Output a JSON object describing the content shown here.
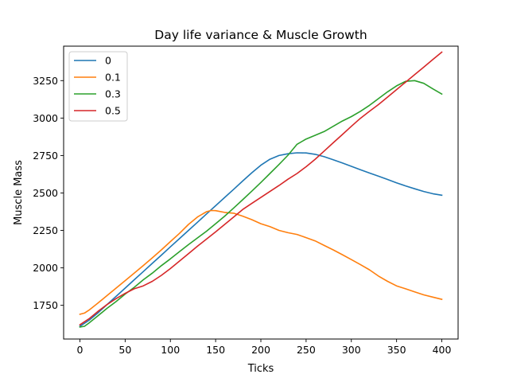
{
  "chart_data": {
    "type": "line",
    "title": "Day life variance & Muscle Growth",
    "xlabel": "Ticks",
    "ylabel": "Muscle Mass",
    "xlim": [
      -18,
      418
    ],
    "ylim": [
      1525,
      3480
    ],
    "xticks": [
      0,
      50,
      100,
      150,
      200,
      250,
      300,
      350,
      400
    ],
    "yticks": [
      1750,
      2000,
      2250,
      2500,
      2750,
      3000,
      3250
    ],
    "grid": false,
    "legend_position": "top-left",
    "series": [
      {
        "name": "0",
        "color": "#1f77b4",
        "points": [
          [
            0,
            1610
          ],
          [
            10,
            1650
          ],
          [
            20,
            1700
          ],
          [
            30,
            1755
          ],
          [
            40,
            1810
          ],
          [
            50,
            1865
          ],
          [
            60,
            1920
          ],
          [
            70,
            1975
          ],
          [
            80,
            2030
          ],
          [
            90,
            2085
          ],
          [
            100,
            2140
          ],
          [
            110,
            2195
          ],
          [
            120,
            2250
          ],
          [
            130,
            2305
          ],
          [
            140,
            2360
          ],
          [
            150,
            2415
          ],
          [
            160,
            2470
          ],
          [
            170,
            2525
          ],
          [
            180,
            2580
          ],
          [
            190,
            2635
          ],
          [
            200,
            2685
          ],
          [
            210,
            2725
          ],
          [
            220,
            2750
          ],
          [
            230,
            2762
          ],
          [
            240,
            2768
          ],
          [
            250,
            2767
          ],
          [
            260,
            2758
          ],
          [
            270,
            2742
          ],
          [
            280,
            2722
          ],
          [
            290,
            2700
          ],
          [
            300,
            2678
          ],
          [
            310,
            2655
          ],
          [
            320,
            2633
          ],
          [
            330,
            2612
          ],
          [
            340,
            2590
          ],
          [
            350,
            2568
          ],
          [
            360,
            2547
          ],
          [
            370,
            2528
          ],
          [
            380,
            2510
          ],
          [
            390,
            2495
          ],
          [
            400,
            2485
          ]
        ]
      },
      {
        "name": "0.1",
        "color": "#ff7f0e",
        "points": [
          [
            0,
            1690
          ],
          [
            5,
            1698
          ],
          [
            10,
            1718
          ],
          [
            20,
            1765
          ],
          [
            30,
            1815
          ],
          [
            40,
            1865
          ],
          [
            50,
            1915
          ],
          [
            60,
            1965
          ],
          [
            70,
            2015
          ],
          [
            80,
            2067
          ],
          [
            90,
            2120
          ],
          [
            100,
            2175
          ],
          [
            110,
            2230
          ],
          [
            120,
            2290
          ],
          [
            130,
            2340
          ],
          [
            140,
            2375
          ],
          [
            145,
            2383
          ],
          [
            150,
            2382
          ],
          [
            160,
            2370
          ],
          [
            170,
            2365
          ],
          [
            180,
            2345
          ],
          [
            190,
            2322
          ],
          [
            200,
            2295
          ],
          [
            210,
            2275
          ],
          [
            220,
            2250
          ],
          [
            230,
            2235
          ],
          [
            240,
            2223
          ],
          [
            250,
            2202
          ],
          [
            260,
            2180
          ],
          [
            270,
            2150
          ],
          [
            280,
            2120
          ],
          [
            290,
            2088
          ],
          [
            300,
            2055
          ],
          [
            310,
            2022
          ],
          [
            320,
            1987
          ],
          [
            330,
            1945
          ],
          [
            340,
            1910
          ],
          [
            350,
            1880
          ],
          [
            360,
            1860
          ],
          [
            370,
            1840
          ],
          [
            380,
            1820
          ],
          [
            390,
            1805
          ],
          [
            400,
            1790
          ]
        ]
      },
      {
        "name": "0.3",
        "color": "#2ca02c",
        "points": [
          [
            0,
            1605
          ],
          [
            5,
            1610
          ],
          [
            10,
            1632
          ],
          [
            20,
            1680
          ],
          [
            30,
            1730
          ],
          [
            40,
            1775
          ],
          [
            50,
            1825
          ],
          [
            60,
            1870
          ],
          [
            70,
            1920
          ],
          [
            80,
            1965
          ],
          [
            90,
            2015
          ],
          [
            100,
            2060
          ],
          [
            110,
            2108
          ],
          [
            120,
            2155
          ],
          [
            130,
            2200
          ],
          [
            140,
            2245
          ],
          [
            150,
            2295
          ],
          [
            160,
            2345
          ],
          [
            170,
            2400
          ],
          [
            180,
            2455
          ],
          [
            190,
            2512
          ],
          [
            200,
            2570
          ],
          [
            210,
            2630
          ],
          [
            220,
            2690
          ],
          [
            230,
            2752
          ],
          [
            240,
            2825
          ],
          [
            250,
            2860
          ],
          [
            260,
            2885
          ],
          [
            270,
            2910
          ],
          [
            280,
            2945
          ],
          [
            290,
            2980
          ],
          [
            300,
            3010
          ],
          [
            310,
            3045
          ],
          [
            320,
            3085
          ],
          [
            330,
            3130
          ],
          [
            340,
            3175
          ],
          [
            350,
            3215
          ],
          [
            360,
            3245
          ],
          [
            370,
            3250
          ],
          [
            380,
            3232
          ],
          [
            390,
            3195
          ],
          [
            400,
            3160
          ]
        ]
      },
      {
        "name": "0.5",
        "color": "#d62728",
        "points": [
          [
            0,
            1620
          ],
          [
            10,
            1660
          ],
          [
            20,
            1710
          ],
          [
            30,
            1755
          ],
          [
            40,
            1795
          ],
          [
            50,
            1830
          ],
          [
            60,
            1860
          ],
          [
            70,
            1880
          ],
          [
            80,
            1910
          ],
          [
            90,
            1950
          ],
          [
            100,
            1995
          ],
          [
            110,
            2045
          ],
          [
            120,
            2095
          ],
          [
            130,
            2145
          ],
          [
            140,
            2192
          ],
          [
            150,
            2240
          ],
          [
            160,
            2290
          ],
          [
            170,
            2340
          ],
          [
            180,
            2390
          ],
          [
            190,
            2430
          ],
          [
            200,
            2470
          ],
          [
            210,
            2510
          ],
          [
            220,
            2550
          ],
          [
            230,
            2592
          ],
          [
            240,
            2630
          ],
          [
            250,
            2675
          ],
          [
            260,
            2725
          ],
          [
            270,
            2780
          ],
          [
            280,
            2835
          ],
          [
            290,
            2890
          ],
          [
            300,
            2945
          ],
          [
            310,
            2998
          ],
          [
            320,
            3045
          ],
          [
            330,
            3090
          ],
          [
            340,
            3140
          ],
          [
            350,
            3190
          ],
          [
            360,
            3240
          ],
          [
            370,
            3290
          ],
          [
            380,
            3340
          ],
          [
            390,
            3390
          ],
          [
            400,
            3440
          ]
        ]
      }
    ]
  }
}
